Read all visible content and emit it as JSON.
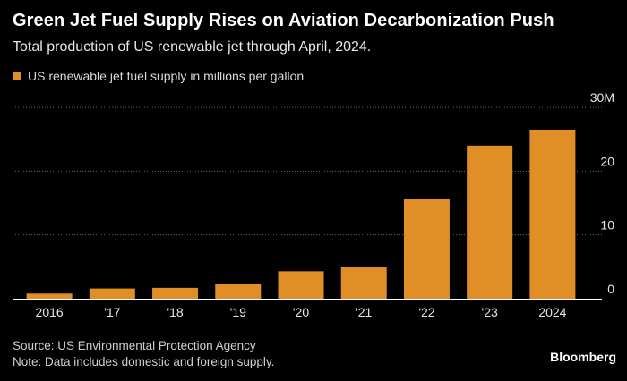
{
  "header": {
    "title": "Green Jet Fuel Supply Rises on Aviation Decarbonization Push",
    "subtitle": "Total production of US renewable jet through April, 2024."
  },
  "legend": {
    "label": "US renewable jet fuel supply in millions per gallon"
  },
  "footer": {
    "source": "Source: US Environmental Protection Agency",
    "note": "Note: Data includes domestic and foreign supply.",
    "brand": "Bloomberg"
  },
  "colors": {
    "bar": "#e08f26",
    "background": "#000000",
    "grid": "#666666",
    "axis": "#ffffff"
  },
  "chart_data": {
    "type": "bar",
    "categories": [
      "2016",
      "'17",
      "'18",
      "'19",
      "'20",
      "'21",
      "'22",
      "'23",
      "2024"
    ],
    "values": [
      0.8,
      1.6,
      1.7,
      2.3,
      4.3,
      4.9,
      15.6,
      24.0,
      26.5
    ],
    "ylim": [
      0,
      30
    ],
    "yticks": [
      {
        "value": 0,
        "label": "0"
      },
      {
        "value": 10,
        "label": "10"
      },
      {
        "value": 20,
        "label": "20"
      },
      {
        "value": 30,
        "label": "30M"
      }
    ],
    "grid": true,
    "legend_position": "top-left"
  }
}
